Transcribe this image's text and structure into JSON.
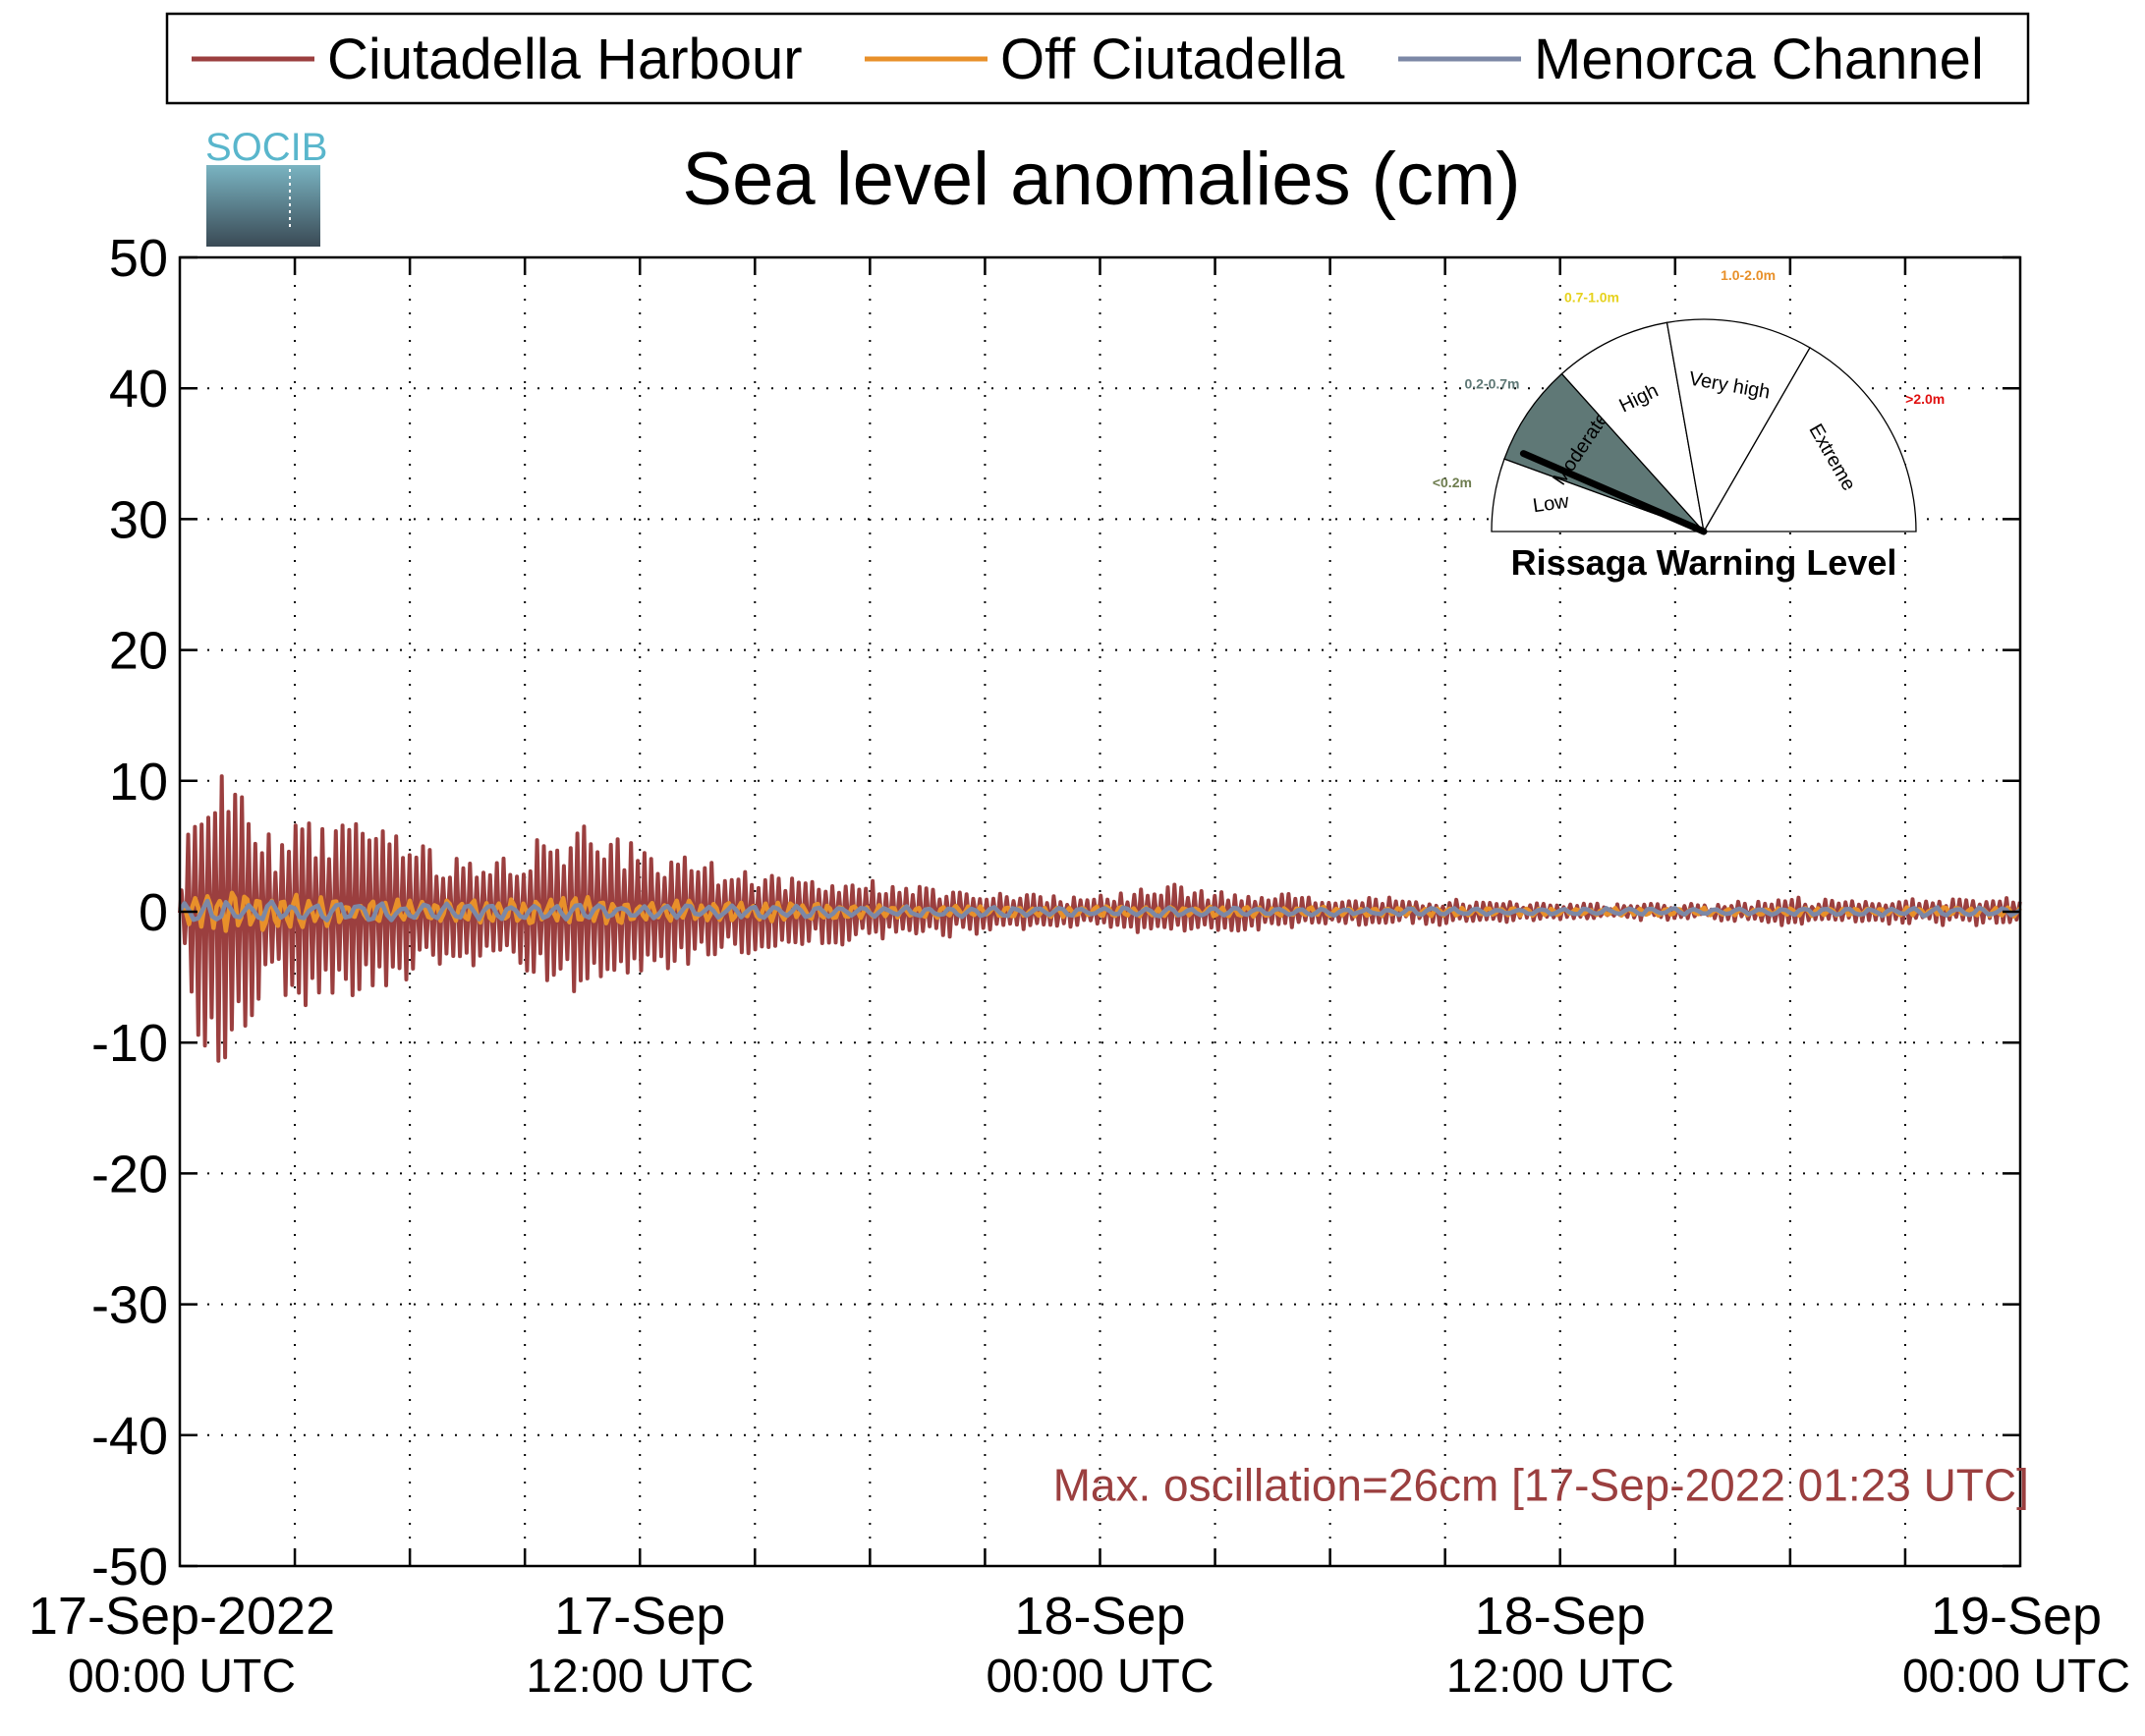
{
  "colors": {
    "ciutadella_harbour": "#9b3f3f",
    "off_ciutadella": "#e8902a",
    "menorca_channel": "#7c88a6",
    "gauge_fill": "#5f7876",
    "annotation": "#9b3f3f",
    "logo_text": "#59b6cc"
  },
  "logo": {
    "text": "SOCIB"
  },
  "chart_data": {
    "type": "line",
    "title": "Sea level anomalies (cm)",
    "xlabel": "",
    "ylabel": "",
    "x_unit": "hours since 17-Sep-2022 00:00 UTC",
    "xlim": [
      0,
      48
    ],
    "ylim": [
      -50,
      50
    ],
    "yticks": [
      50,
      40,
      30,
      20,
      10,
      0,
      -10,
      -20,
      -30,
      -40,
      -50
    ],
    "grid": true,
    "legend_position": "top",
    "x_tick_labels": [
      {
        "x": 0,
        "line1": "17-Sep-2022",
        "line2": "00:00 UTC"
      },
      {
        "x": 12,
        "line1": "17-Sep",
        "line2": "12:00 UTC"
      },
      {
        "x": 24,
        "line1": "18-Sep",
        "line2": "00:00 UTC"
      },
      {
        "x": 36,
        "line1": "18-Sep",
        "line2": "12:00 UTC"
      },
      {
        "x": 48,
        "line1": "19-Sep",
        "line2": "00:00 UTC"
      }
    ],
    "series": [
      {
        "name": "Ciutadella Harbour",
        "color_key": "ciutadella_harbour",
        "oscillation_period_minutes": 10.5,
        "envelope_cm": [
          [
            0.0,
            0.5
          ],
          [
            0.2,
            6
          ],
          [
            0.5,
            11
          ],
          [
            1.0,
            12
          ],
          [
            1.5,
            10
          ],
          [
            2.0,
            8
          ],
          [
            2.5,
            5
          ],
          [
            3.0,
            8
          ],
          [
            3.5,
            7
          ],
          [
            4.0,
            6.5
          ],
          [
            5.0,
            7
          ],
          [
            6.0,
            6
          ],
          [
            7.0,
            4
          ],
          [
            8.0,
            4
          ],
          [
            9.0,
            5
          ],
          [
            10.0,
            6
          ],
          [
            10.7,
            6.5
          ],
          [
            11.5,
            5.5
          ],
          [
            12.5,
            5
          ],
          [
            13.5,
            4
          ],
          [
            15.0,
            3
          ],
          [
            17.0,
            2.5
          ],
          [
            19.0,
            2
          ],
          [
            21.0,
            1.5
          ],
          [
            23.0,
            1.2
          ],
          [
            24.5,
            1.2
          ],
          [
            25.5,
            1.8
          ],
          [
            26.0,
            2
          ],
          [
            27.0,
            1.5
          ],
          [
            29.0,
            1.2
          ],
          [
            32.0,
            1.0
          ],
          [
            35.0,
            0.6
          ],
          [
            38.0,
            0.5
          ],
          [
            40.0,
            0.5
          ],
          [
            42.0,
            1.0
          ],
          [
            44.0,
            0.8
          ],
          [
            46.0,
            0.9
          ],
          [
            48.0,
            1.0
          ]
        ]
      },
      {
        "name": "Off Ciutadella",
        "color_key": "off_ciutadella",
        "envelope_cm": [
          [
            0.0,
            0.5
          ],
          [
            0.5,
            1.5
          ],
          [
            1.5,
            1.8
          ],
          [
            3.0,
            1.3
          ],
          [
            6.0,
            1.0
          ],
          [
            10.0,
            1.2
          ],
          [
            14.0,
            0.8
          ],
          [
            20.0,
            0.5
          ],
          [
            30.0,
            0.4
          ],
          [
            40.0,
            0.3
          ],
          [
            48.0,
            0.4
          ]
        ]
      },
      {
        "name": "Menorca Channel",
        "color_key": "menorca_channel",
        "envelope_cm": [
          [
            0.0,
            0.8
          ],
          [
            1.5,
            1.0
          ],
          [
            5.0,
            0.7
          ],
          [
            10.0,
            0.6
          ],
          [
            20.0,
            0.4
          ],
          [
            30.0,
            0.3
          ],
          [
            40.0,
            0.3
          ],
          [
            48.0,
            0.4
          ]
        ]
      }
    ],
    "annotations": [
      {
        "text": "Max. oscillation=26cm [17-Sep-2022 01:23 UTC]",
        "x": 35.5,
        "y": -45
      }
    ]
  },
  "gauge": {
    "title": "Rissaga Warning Level",
    "segments": [
      "Low",
      "Moderate",
      "High",
      "Very high",
      "Extreme"
    ],
    "ranges": [
      {
        "text": "<0.2m",
        "color": "#6e7d4f"
      },
      {
        "text": "0.2-0.7m",
        "color": "#5f7876"
      },
      {
        "text": "0.7-1.0m",
        "color": "#e6d21e"
      },
      {
        "text": "1.0-2.0m",
        "color": "#e8902a"
      },
      {
        "text": ">2.0m",
        "color": "#e01010"
      }
    ],
    "active_segment": "Moderate",
    "needle_fraction": 0.13
  }
}
